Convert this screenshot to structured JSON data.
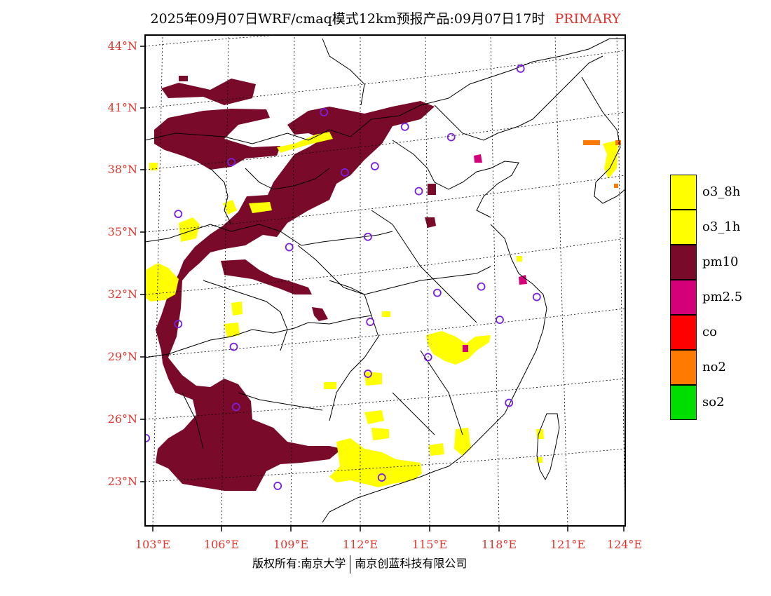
{
  "title": {
    "main": "2025年09月07日WRF/cmaq模式12km预报产品:09月07日17时",
    "tag": "PRIMARY"
  },
  "axes": {
    "lat_labels": [
      "44°N",
      "41°N",
      "38°N",
      "35°N",
      "32°N",
      "29°N",
      "26°N",
      "23°N"
    ],
    "lon_labels": [
      "103°E",
      "106°E",
      "109°E",
      "112°E",
      "115°E",
      "118°E",
      "121°E",
      "124°E"
    ]
  },
  "legend": [
    {
      "label": "o3_8h",
      "color": "#ffff00"
    },
    {
      "label": "o3_1h",
      "color": "#ffff00"
    },
    {
      "label": "pm10",
      "color": "#7a0a2a"
    },
    {
      "label": "pm2.5",
      "color": "#d4007a"
    },
    {
      "label": "co",
      "color": "#ff0000"
    },
    {
      "label": "no2",
      "color": "#ff7a00"
    },
    {
      "label": "so2",
      "color": "#00dd00"
    }
  ],
  "footer": {
    "left": "版权所有:南京大学",
    "right": "南京创蓝科技有限公司"
  },
  "colors": {
    "pm10": "#7a0a2a",
    "o3": "#ffff00",
    "pm25": "#d4007a",
    "no2": "#ff7a00",
    "station": "#7a1fe0",
    "accent": "#e0342c"
  },
  "stations": [
    {
      "lon": 118.9,
      "lat": 42.9
    },
    {
      "lon": 110.4,
      "lat": 40.8
    },
    {
      "lon": 113.9,
      "lat": 40.1
    },
    {
      "lon": 115.9,
      "lat": 39.6
    },
    {
      "lon": 106.4,
      "lat": 38.4
    },
    {
      "lon": 111.3,
      "lat": 37.9
    },
    {
      "lon": 112.6,
      "lat": 38.2
    },
    {
      "lon": 114.5,
      "lat": 37.0
    },
    {
      "lon": 104.1,
      "lat": 35.9
    },
    {
      "lon": 112.3,
      "lat": 34.8
    },
    {
      "lon": 108.9,
      "lat": 34.3
    },
    {
      "lon": 117.2,
      "lat": 32.4
    },
    {
      "lon": 115.3,
      "lat": 32.1
    },
    {
      "lon": 119.6,
      "lat": 31.9
    },
    {
      "lon": 118.0,
      "lat": 30.8
    },
    {
      "lon": 104.1,
      "lat": 30.6
    },
    {
      "lon": 112.4,
      "lat": 30.7
    },
    {
      "lon": 106.5,
      "lat": 29.5
    },
    {
      "lon": 114.9,
      "lat": 29.0
    },
    {
      "lon": 112.3,
      "lat": 28.2
    },
    {
      "lon": 118.4,
      "lat": 26.8
    },
    {
      "lon": 106.6,
      "lat": 26.6
    },
    {
      "lon": 102.7,
      "lat": 25.1
    },
    {
      "lon": 112.9,
      "lat": 23.2
    },
    {
      "lon": 108.4,
      "lat": 22.8
    }
  ]
}
